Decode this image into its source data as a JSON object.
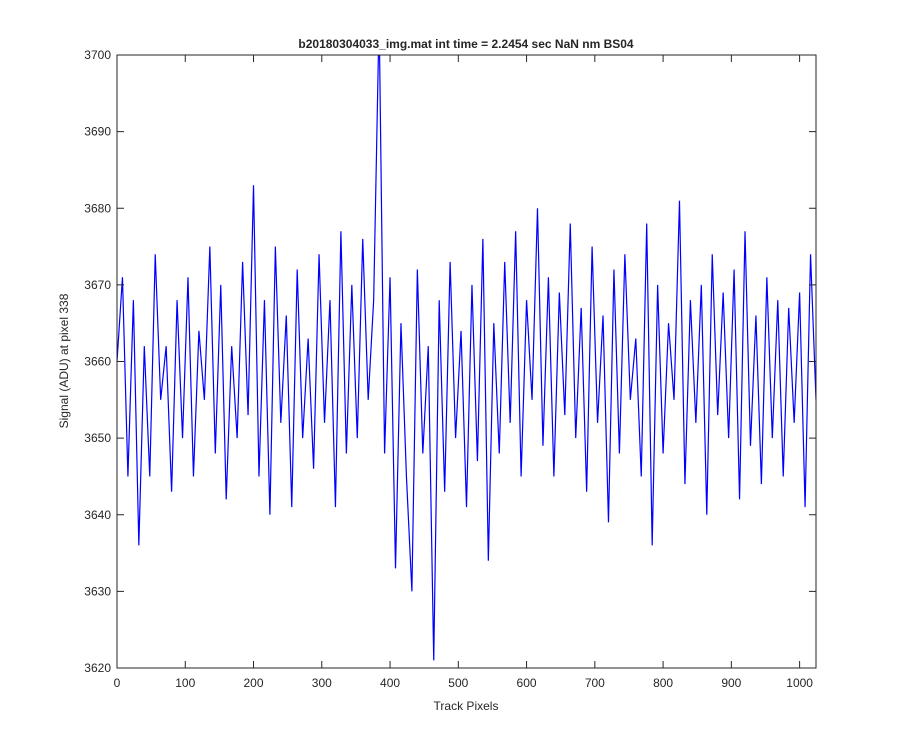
{
  "chart_data": {
    "type": "line",
    "title": "b20180304033_img.mat int time = 2.2454 sec  NaN nm BS04",
    "xlabel": "Track Pixels",
    "ylabel": "Signal (ADU) at pixel 338",
    "x": [
      0,
      8,
      16,
      24,
      32,
      40,
      48,
      56,
      64,
      72,
      80,
      88,
      96,
      104,
      112,
      120,
      128,
      136,
      144,
      152,
      160,
      168,
      176,
      184,
      192,
      200,
      208,
      216,
      224,
      232,
      240,
      248,
      256,
      264,
      272,
      280,
      288,
      296,
      304,
      312,
      320,
      328,
      336,
      344,
      352,
      360,
      368,
      376,
      384,
      392,
      400,
      408,
      416,
      424,
      432,
      440,
      448,
      456,
      464,
      472,
      480,
      488,
      496,
      504,
      512,
      520,
      528,
      536,
      544,
      552,
      560,
      568,
      576,
      584,
      592,
      600,
      608,
      616,
      624,
      632,
      640,
      648,
      656,
      664,
      672,
      680,
      688,
      696,
      704,
      712,
      720,
      728,
      736,
      744,
      752,
      760,
      768,
      776,
      784,
      792,
      800,
      808,
      816,
      824,
      832,
      840,
      848,
      856,
      864,
      872,
      880,
      888,
      896,
      904,
      912,
      920,
      928,
      936,
      944,
      952,
      960,
      968,
      976,
      984,
      992,
      1000,
      1008,
      1016,
      1024
    ],
    "series": [
      {
        "name": "signal",
        "color": "#0000ff",
        "values": [
          3660,
          3671,
          3645,
          3668,
          3636,
          3662,
          3645,
          3674,
          3655,
          3662,
          3643,
          3668,
          3650,
          3671,
          3645,
          3664,
          3655,
          3675,
          3648,
          3670,
          3642,
          3662,
          3650,
          3673,
          3653,
          3683,
          3645,
          3668,
          3640,
          3675,
          3652,
          3666,
          3641,
          3672,
          3650,
          3663,
          3646,
          3674,
          3652,
          3668,
          3641,
          3677,
          3648,
          3670,
          3650,
          3676,
          3655,
          3668,
          3705,
          3648,
          3671,
          3633,
          3665,
          3645,
          3630,
          3672,
          3648,
          3662,
          3621,
          3668,
          3643,
          3673,
          3650,
          3664,
          3641,
          3670,
          3647,
          3676,
          3634,
          3665,
          3648,
          3673,
          3652,
          3677,
          3645,
          3668,
          3655,
          3680,
          3649,
          3671,
          3645,
          3669,
          3653,
          3678,
          3650,
          3667,
          3643,
          3675,
          3652,
          3666,
          3639,
          3672,
          3648,
          3674,
          3655,
          3663,
          3645,
          3678,
          3636,
          3670,
          3648,
          3665,
          3655,
          3681,
          3644,
          3668,
          3652,
          3670,
          3640,
          3674,
          3653,
          3669,
          3650,
          3672,
          3642,
          3677,
          3649,
          3666,
          3644,
          3671,
          3650,
          3668,
          3645,
          3667,
          3652,
          3669,
          3641,
          3674,
          3655
        ]
      }
    ],
    "xlim": [
      0,
      1024
    ],
    "ylim": [
      3620,
      3700
    ],
    "xticks": [
      0,
      100,
      200,
      300,
      400,
      500,
      600,
      700,
      800,
      900,
      1000
    ],
    "yticks": [
      3620,
      3630,
      3640,
      3650,
      3660,
      3670,
      3680,
      3690,
      3700
    ]
  }
}
